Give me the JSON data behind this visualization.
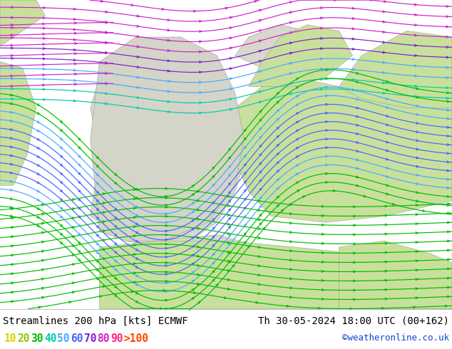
{
  "title_left": "Streamlines 200 hPa [kts] ECMWF",
  "title_right": "Th 30-05-2024 18:00 UTC (00+162)",
  "copyright": "©weatheronline.co.uk",
  "bg_green": "#c8e6a0",
  "bg_light_green": "#d8eeb0",
  "land_gray": "#cccccc",
  "ocean_gray": "#dddddd",
  "title_font_size": 10,
  "legend_font_size": 10.5,
  "legend_values": [
    "10",
    "20",
    "30",
    "40",
    "50",
    "60",
    "70",
    "80",
    "90",
    ">100"
  ],
  "legend_colors": [
    "#d4d400",
    "#88cc00",
    "#00bb00",
    "#00ccaa",
    "#44aaff",
    "#4466ff",
    "#7722cc",
    "#cc22cc",
    "#ff2288",
    "#ff4400"
  ],
  "speed_colors": {
    "10": "#d4d400",
    "20": "#88cc00",
    "30": "#00bb00",
    "40": "#00ccaa",
    "50": "#44aaff",
    "60": "#4466ff",
    "70": "#7722cc",
    "80": "#cc22cc",
    "90": "#ff2288",
    "100": "#ff4400"
  }
}
